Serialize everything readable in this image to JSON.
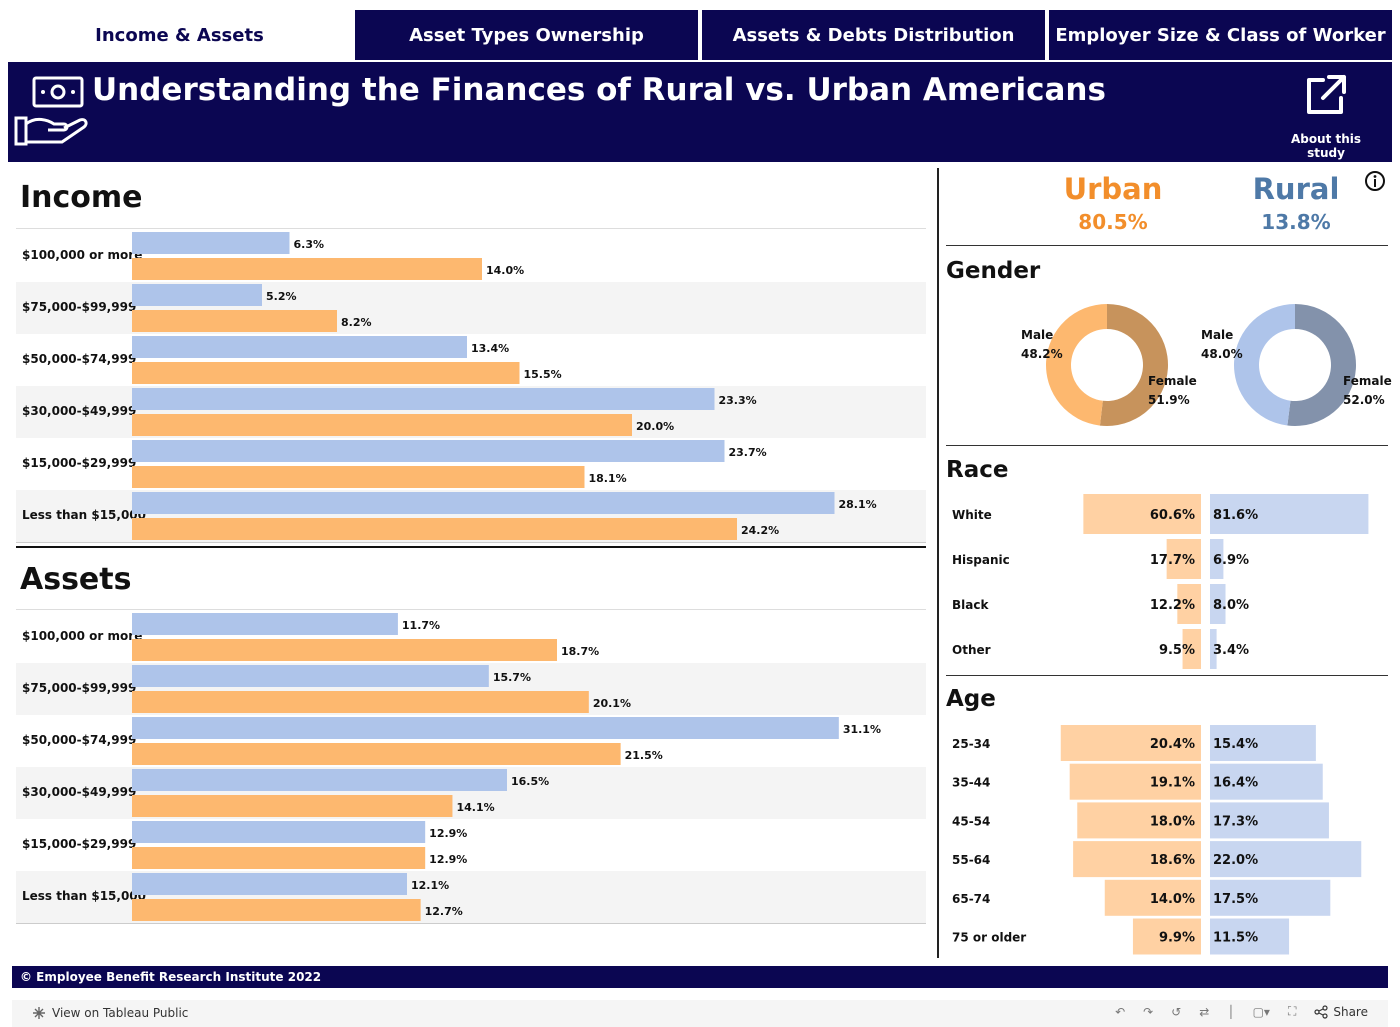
{
  "tabs": [
    {
      "label": "Income & Assets",
      "active": true
    },
    {
      "label": "Asset Types Ownership",
      "active": false
    },
    {
      "label": "Assets & Debts Distribution",
      "active": false
    },
    {
      "label": "Employer Size & Class of Worker",
      "active": false
    }
  ],
  "header": {
    "title": "Understanding the Finances of Rural vs. Urban Americans",
    "about_label": "About this study",
    "logo_icon": "money-hand-icon",
    "about_icon": "external-link-icon"
  },
  "colors": {
    "navy": "#0b0652",
    "urban_bar": "#fdb86f",
    "rural_bar": "#aec4ea",
    "urban_text": "#f28e2b",
    "rural_text": "#4e79a7"
  },
  "summary": {
    "urban_label": "Urban",
    "urban_value": "80.5%",
    "rural_label": "Rural",
    "rural_value": "13.8%"
  },
  "footer": {
    "copyright": "© Employee Benefit Research Institute 2022"
  },
  "toolbar": {
    "view_label": "View on Tableau Public",
    "share_label": "Share"
  },
  "chart_data": [
    {
      "type": "bar",
      "orientation": "horizontal",
      "title": "Income",
      "categories": [
        "$100,000 or more",
        "$75,000-$99,999",
        "$50,000-$74,999",
        "$30,000-$49,999",
        "$15,000-$29,999",
        "Less than $15,000"
      ],
      "series": [
        {
          "name": "Rural",
          "values": [
            6.3,
            5.2,
            13.4,
            23.3,
            23.7,
            28.1
          ]
        },
        {
          "name": "Urban",
          "values": [
            14.0,
            8.2,
            15.5,
            20.0,
            18.1,
            24.2
          ]
        }
      ],
      "unit": "%",
      "xlim": [
        0,
        30
      ]
    },
    {
      "type": "bar",
      "orientation": "horizontal",
      "title": "Assets",
      "categories": [
        "$100,000 or more",
        "$75,000-$99,999",
        "$50,000-$74,999",
        "$30,000-$49,999",
        "$15,000-$29,999",
        "Less than $15,000"
      ],
      "series": [
        {
          "name": "Rural",
          "values": [
            11.7,
            15.7,
            31.1,
            16.5,
            12.9,
            12.1
          ]
        },
        {
          "name": "Urban",
          "values": [
            18.7,
            20.1,
            21.5,
            14.1,
            12.9,
            12.7
          ]
        }
      ],
      "unit": "%",
      "xlim": [
        0,
        33
      ]
    },
    {
      "type": "pie",
      "subtype": "donut",
      "title": "Gender",
      "group": "Urban",
      "labels": [
        "Male",
        "Female"
      ],
      "values": [
        48.2,
        51.9
      ],
      "value_labels": [
        "48.2%",
        "51.9%"
      ]
    },
    {
      "type": "pie",
      "subtype": "donut",
      "title": "Gender",
      "group": "Rural",
      "labels": [
        "Male",
        "Female"
      ],
      "values": [
        48.0,
        52.0
      ],
      "value_labels": [
        "48.0%",
        "52.0%"
      ]
    },
    {
      "type": "bar",
      "orientation": "diverging",
      "title": "Race",
      "categories": [
        "White",
        "Hispanic",
        "Black",
        "Other"
      ],
      "series": [
        {
          "name": "Urban",
          "values": [
            60.6,
            17.7,
            12.2,
            9.5
          ]
        },
        {
          "name": "Rural",
          "values": [
            81.6,
            6.9,
            8.0,
            3.4
          ]
        }
      ],
      "unit": "%",
      "xlim": [
        0,
        85
      ]
    },
    {
      "type": "bar",
      "orientation": "diverging",
      "title": "Age",
      "categories": [
        "25-34",
        "35-44",
        "45-54",
        "55-64",
        "65-74",
        "75 or older"
      ],
      "series": [
        {
          "name": "Urban",
          "values": [
            20.4,
            19.1,
            18.0,
            18.6,
            14.0,
            9.9
          ]
        },
        {
          "name": "Rural",
          "values": [
            15.4,
            16.4,
            17.3,
            22.0,
            17.5,
            11.5
          ]
        }
      ],
      "unit": "%",
      "xlim": [
        0,
        24
      ]
    }
  ]
}
